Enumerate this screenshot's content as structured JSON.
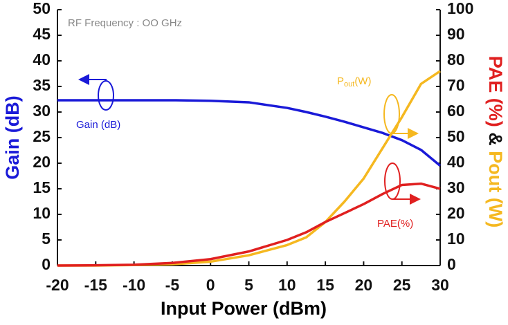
{
  "chart_data": {
    "type": "line",
    "subtitle": "RF Frequency : OO GHz",
    "x_label": "Input Power (dBm)",
    "y_label": "Gain (dB)",
    "y2_label_parts": [
      "PAE (%)",
      "&",
      "Pout (W)"
    ],
    "annotations": {
      "gain": "Gain (dB)",
      "pout_main": "P",
      "pout_sub": "out",
      "pout_unit": "(W)",
      "pae": "PAE(%)"
    },
    "x": [
      -20,
      -15,
      -10,
      -5,
      0,
      5,
      10,
      12.5,
      15,
      17.5,
      20,
      22.5,
      25,
      27.5,
      30
    ],
    "series": [
      {
        "name": "Gain (dB)",
        "color": "#1a1ad8",
        "axis": "y",
        "values": [
          32.3,
          32.3,
          32.3,
          32.3,
          32.2,
          31.9,
          30.8,
          30,
          29.1,
          28.1,
          27,
          25.9,
          24.5,
          22.6,
          19.5
        ]
      },
      {
        "name": "Pout (W)",
        "color": "#f5b820",
        "axis": "y2",
        "values": [
          0,
          0,
          0.2,
          0.5,
          1.5,
          4,
          8,
          11,
          17,
          25,
          34,
          46,
          58,
          71,
          76
        ]
      },
      {
        "name": "PAE (%)",
        "color": "#e02020",
        "axis": "y2",
        "values": [
          0,
          0.1,
          0.3,
          1,
          2.5,
          5.5,
          10,
          13,
          17,
          20.5,
          24,
          28,
          31.5,
          32,
          30
        ]
      }
    ],
    "xlim": [
      -20,
      30
    ],
    "xticks": [
      -20,
      -15,
      -10,
      -5,
      0,
      5,
      10,
      15,
      20,
      25,
      30
    ],
    "ylim": [
      0,
      50
    ],
    "yticks": [
      0,
      5,
      10,
      15,
      20,
      25,
      30,
      35,
      40,
      45,
      50
    ],
    "y2lim": [
      0,
      100
    ],
    "y2ticks": [
      0,
      10,
      20,
      30,
      40,
      50,
      60,
      70,
      80,
      90,
      100
    ]
  }
}
